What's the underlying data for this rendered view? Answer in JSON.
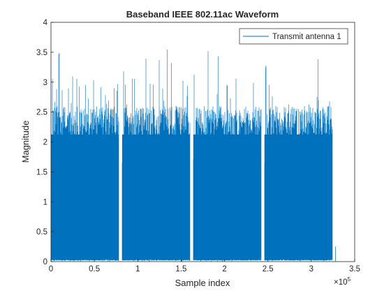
{
  "chart_data": {
    "type": "line",
    "title": "Baseband IEEE 802.11ac Waveform",
    "xlabel": "Sample index",
    "ylabel": "Magnitude",
    "x_exponent_label": "×10",
    "x_exponent_power": "5",
    "xlim": [
      0,
      350000
    ],
    "ylim": [
      0,
      4
    ],
    "x_ticks": [
      0,
      50000,
      100000,
      150000,
      200000,
      250000,
      300000,
      350000
    ],
    "x_tick_labels": [
      "0",
      "0.5",
      "1",
      "1.5",
      "2",
      "2.5",
      "3",
      "3.5"
    ],
    "y_ticks": [
      0,
      0.5,
      1,
      1.5,
      2,
      2.5,
      3,
      3.5,
      4
    ],
    "y_tick_labels": [
      "0",
      "0.5",
      "1",
      "1.5",
      "2",
      "2.5",
      "3",
      "3.5",
      "4"
    ],
    "grid": false,
    "legend_position": "top-right",
    "series": [
      {
        "name": "Transmit antenna 1",
        "color": "#0072BD",
        "packets": [
          {
            "start": 0,
            "end": 78000,
            "typical_peak": 2.5,
            "max_peak": 3.55
          },
          {
            "start": 82000,
            "end": 160000,
            "typical_peak": 2.5,
            "max_peak": 3.55
          },
          {
            "start": 164000,
            "end": 242000,
            "typical_peak": 2.5,
            "max_peak": 3.55
          },
          {
            "start": 246000,
            "end": 324000,
            "typical_peak": 2.5,
            "max_peak": 3.55
          }
        ],
        "tail_spike": {
          "x": 328000,
          "value": 0.25
        }
      }
    ]
  }
}
